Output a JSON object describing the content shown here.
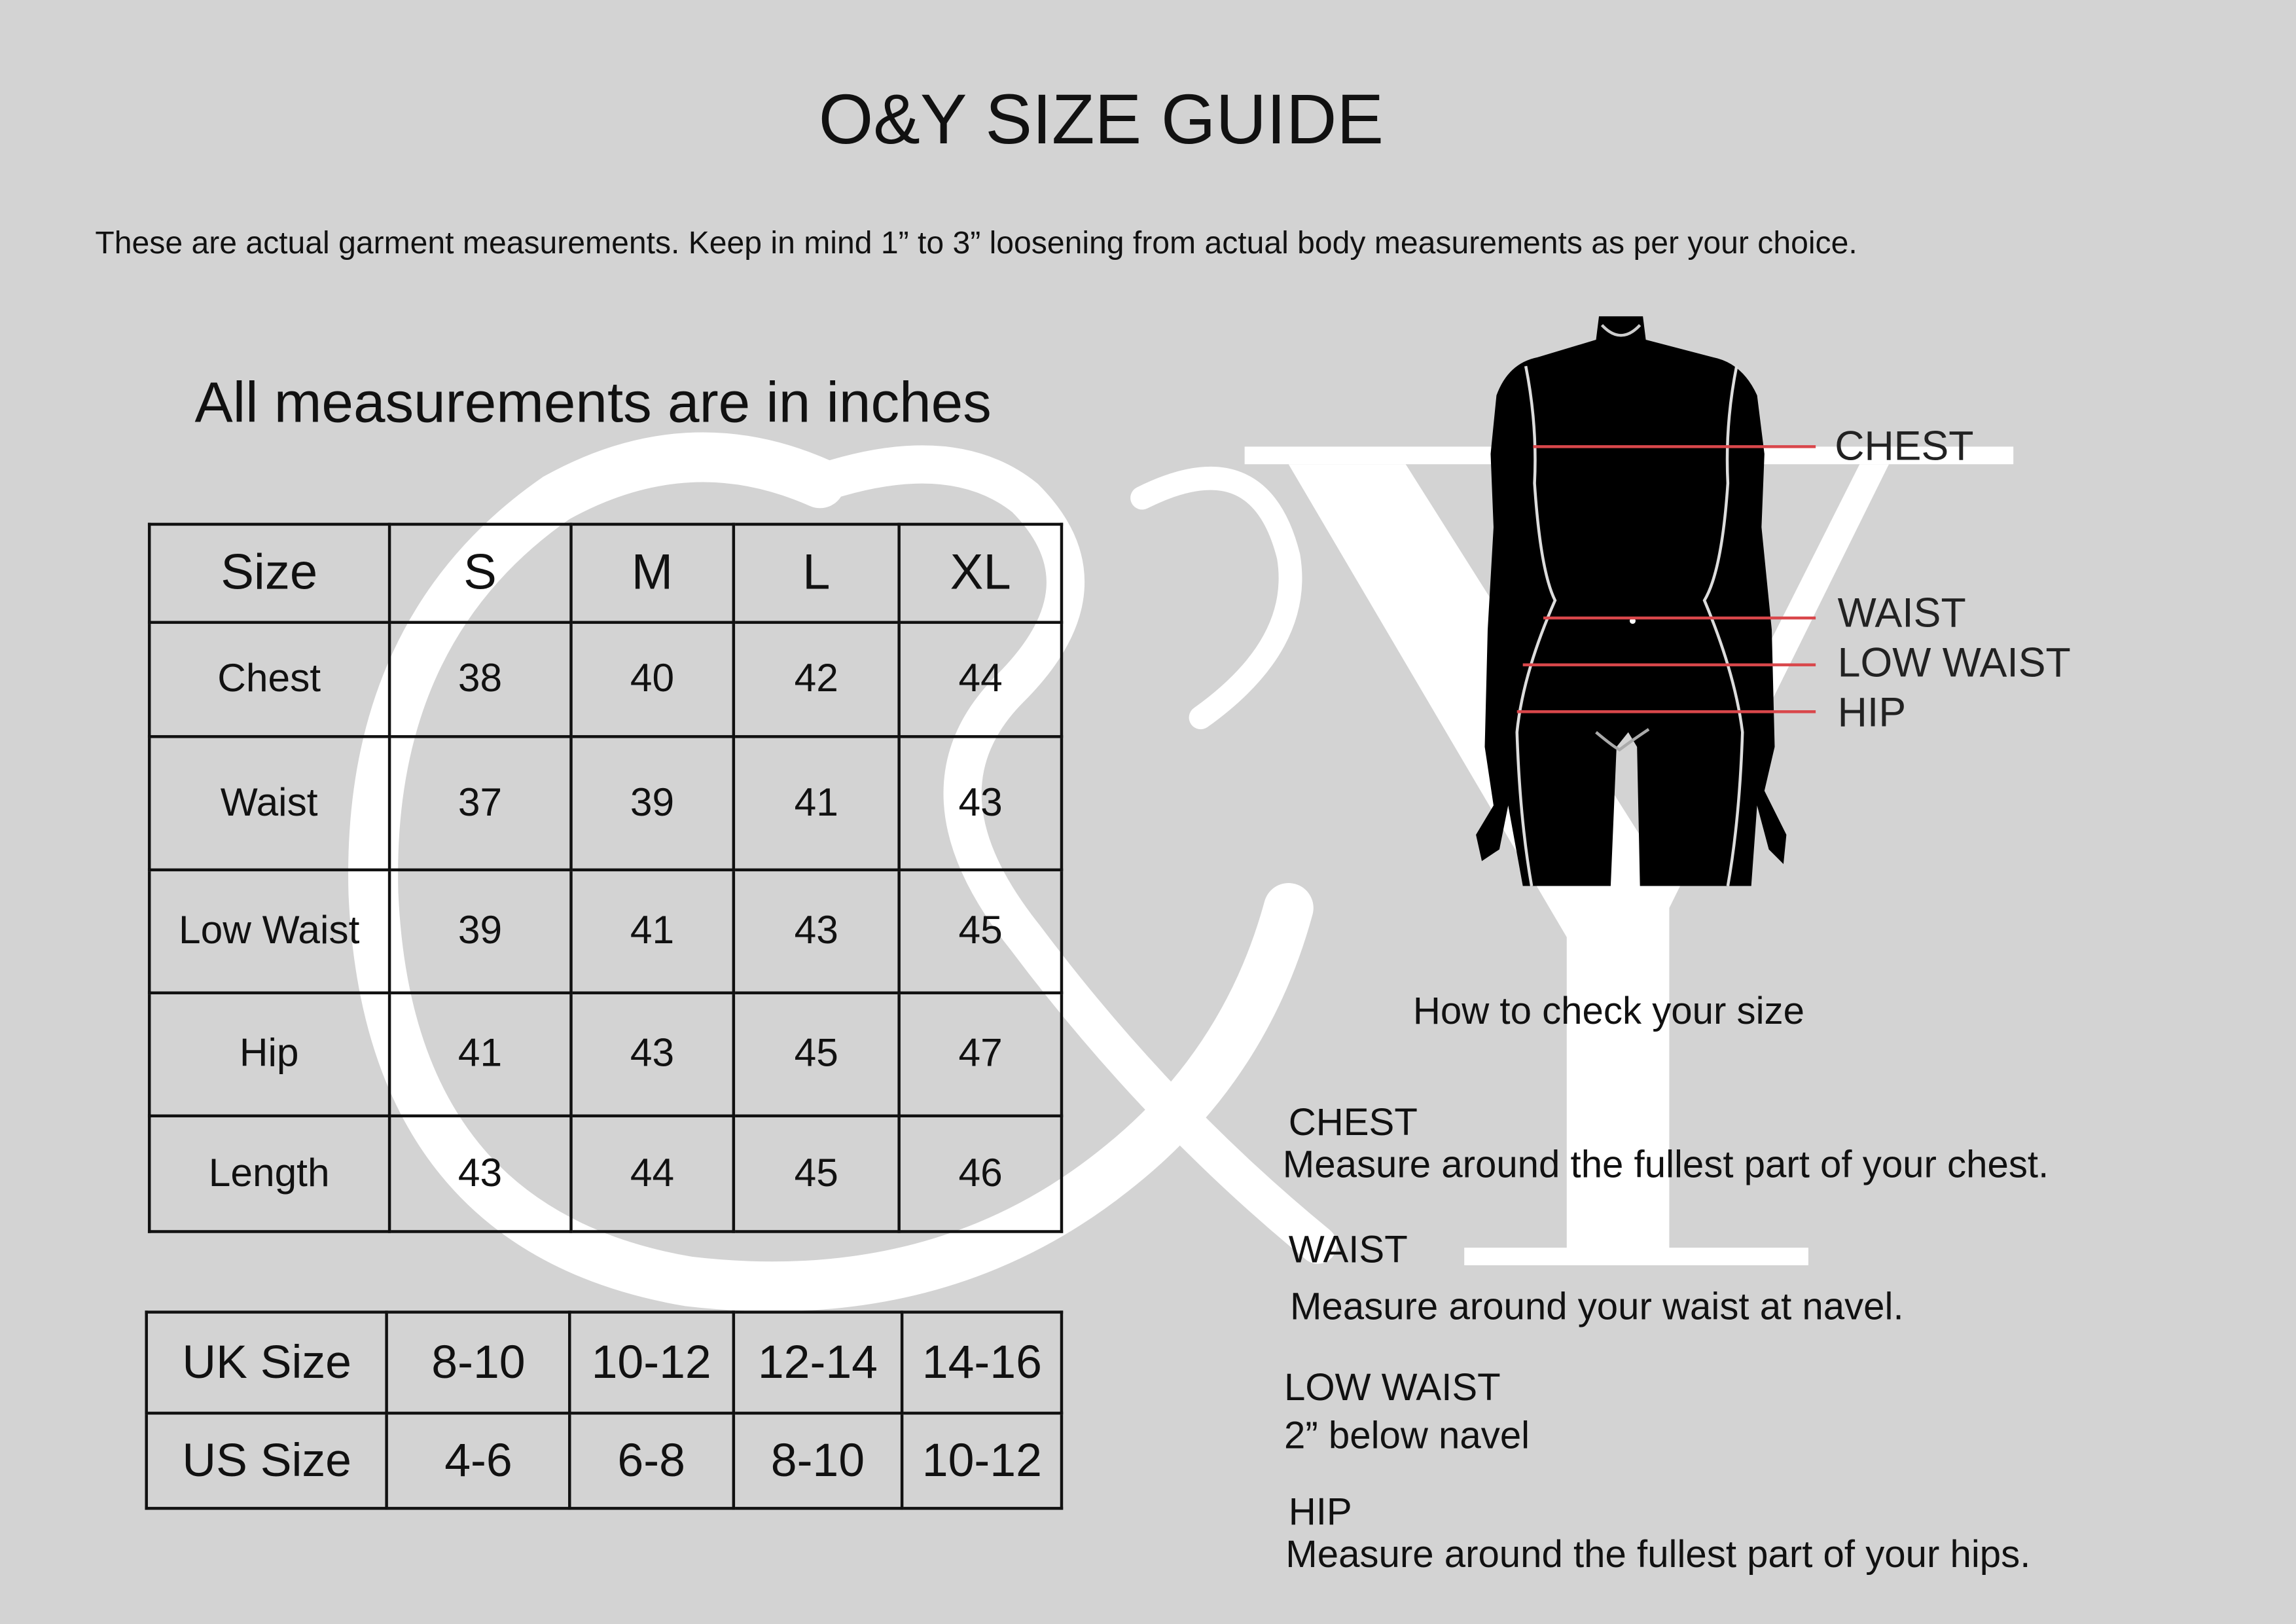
{
  "title": "O&Y SIZE GUIDE",
  "subtitle": "These are actual garment measurements. Keep in mind 1” to 3” loosening from actual body measurements as per your choice.",
  "units_note": "All measurements are in inches",
  "watermark": {
    "amp": "&",
    "y": "Y"
  },
  "size_table": {
    "headers": [
      "Size",
      "S",
      "M",
      "L",
      "XL"
    ],
    "rows": [
      {
        "label": "Chest",
        "values": [
          "38",
          "40",
          "42",
          "44"
        ]
      },
      {
        "label": "Waist",
        "values": [
          "37",
          "39",
          "41",
          "43"
        ]
      },
      {
        "label": "Low Waist",
        "values": [
          "39",
          "41",
          "43",
          "45"
        ]
      },
      {
        "label": "Hip",
        "values": [
          "41",
          "43",
          "45",
          "47"
        ]
      },
      {
        "label": "Length",
        "values": [
          "43",
          "44",
          "45",
          "46"
        ]
      }
    ]
  },
  "conversion_table": {
    "rows": [
      {
        "label": "UK Size",
        "values": [
          "8-10",
          "10-12",
          "12-14",
          "14-16"
        ]
      },
      {
        "label": "US Size",
        "values": [
          "4-6",
          "6-8",
          "8-10",
          "10-12"
        ]
      }
    ]
  },
  "figure_labels": [
    "CHEST",
    "WAIST",
    "LOW WAIST",
    "HIP"
  ],
  "line_color": "#d9474b",
  "how_to": {
    "heading": "How to check your size",
    "items": [
      {
        "title": "CHEST",
        "text": "Measure around the fullest part of your chest."
      },
      {
        "title": "WAIST",
        "text": "Measure around your waist at navel."
      },
      {
        "title": "LOW WAIST",
        "text": "2” below navel"
      },
      {
        "title": "HIP",
        "text": "Measure around the fullest part of your hips."
      }
    ]
  }
}
